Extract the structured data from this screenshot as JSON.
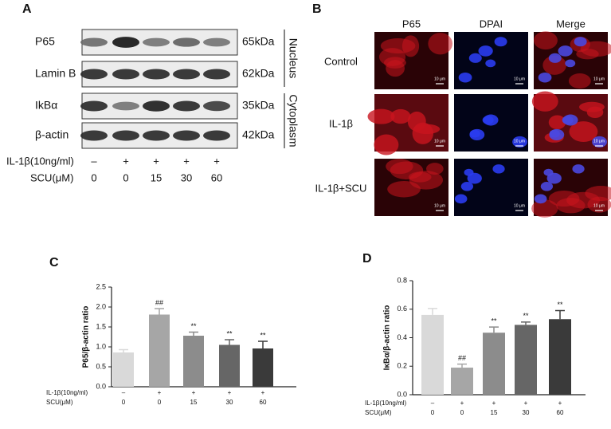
{
  "panels": {
    "A": {
      "label": "A",
      "blots": [
        {
          "protein": "P65",
          "size": "65kDa"
        },
        {
          "protein": "Lamin B",
          "size": "62kDa"
        },
        {
          "protein": "IkBα",
          "size": "35kDa"
        },
        {
          "protein": "β-actin",
          "size": "42kDa"
        }
      ],
      "compartments": [
        "Nucleus",
        "Cytoplasm"
      ],
      "treatments": [
        {
          "name": "IL-1β(10ng/ml)",
          "labels": [
            "–",
            "+",
            "+",
            "+",
            "+"
          ]
        },
        {
          "name": "SCU(μM)",
          "labels": [
            "0",
            "0",
            "15",
            "30",
            "60"
          ]
        }
      ]
    },
    "B": {
      "label": "B",
      "columns": [
        "P65",
        "DPAI",
        "Merge"
      ],
      "rows": [
        "Control",
        "IL-1β",
        "IL-1β+SCU"
      ],
      "scale_bar": "10 μm"
    }
  },
  "chart_data": [
    {
      "type": "bar",
      "panel_label": "C",
      "ylabel": "P65/β-actin ratio",
      "values": [
        0.86,
        1.81,
        1.28,
        1.05,
        0.96
      ],
      "errors": [
        0.07,
        0.15,
        0.09,
        0.13,
        0.18
      ],
      "annotations": [
        null,
        "##",
        "**",
        "**",
        "**"
      ],
      "colors": [
        "#d9d9d9",
        "#a6a6a6",
        "#8c8c8c",
        "#666666",
        "#3a3a3a"
      ],
      "ylim": [
        0,
        2.5
      ],
      "yticks": [
        {
          "value": 0,
          "label": "0.0"
        },
        0.5,
        {
          "value": 1,
          "label": "1.0"
        },
        1.5,
        {
          "value": 2,
          "label": "2.0"
        },
        2.5
      ],
      "treatments": [
        {
          "name": "IL-1β(10ng/ml)",
          "labels": [
            "–",
            "+",
            "+",
            "+",
            "+"
          ]
        },
        {
          "name": "SCU(μM)",
          "labels": [
            "0",
            "0",
            "15",
            "30",
            "60"
          ]
        }
      ]
    },
    {
      "type": "bar",
      "panel_label": "D",
      "ylabel": "IκBα/β-actin ratio",
      "values": [
        0.56,
        0.19,
        0.435,
        0.49,
        0.53
      ],
      "errors": [
        0.045,
        0.025,
        0.04,
        0.02,
        0.06
      ],
      "annotations": [
        null,
        "##",
        "**",
        "**",
        "**"
      ],
      "colors": [
        "#d9d9d9",
        "#a6a6a6",
        "#8c8c8c",
        "#666666",
        "#3a3a3a"
      ],
      "ylim": [
        0,
        0.8
      ],
      "yticks": [
        {
          "value": 0,
          "label": "0.0"
        },
        0.2,
        0.4,
        0.6,
        0.8
      ],
      "treatments": [
        {
          "name": "IL-1β(10ng/ml)",
          "labels": [
            "–",
            "+",
            "+",
            "+",
            "+"
          ]
        },
        {
          "name": "SCU(μM)",
          "labels": [
            "0",
            "0",
            "15",
            "30",
            "60"
          ]
        }
      ]
    }
  ]
}
